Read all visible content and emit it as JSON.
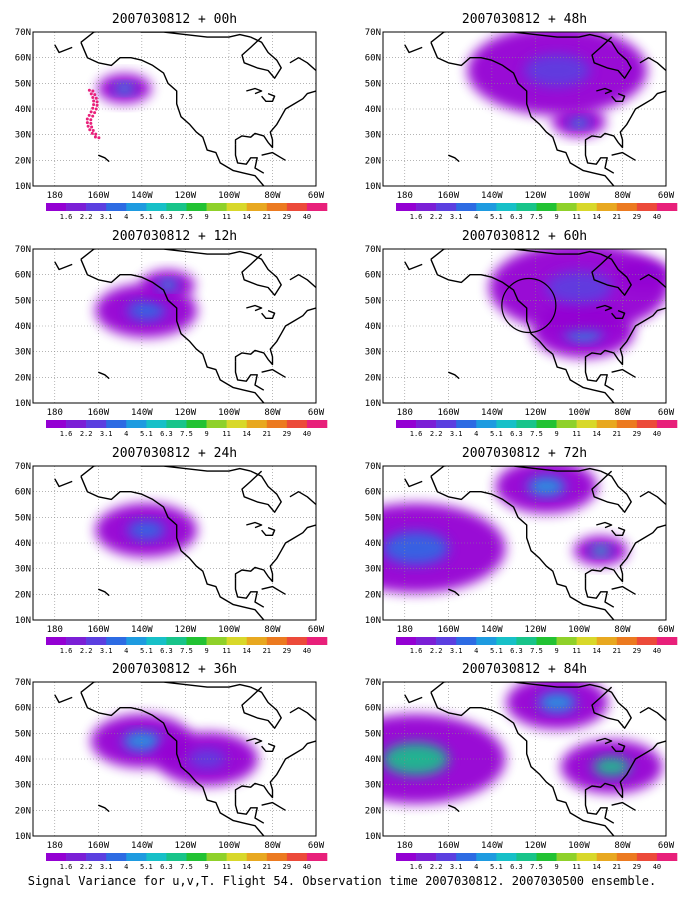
{
  "figure": {
    "footer": "Signal Variance for u,v,T. Flight 54. Observation time 2007030812. 2007030500 ensemble."
  },
  "colorbar": {
    "levels": [
      "1.6",
      "2.2",
      "3.1",
      "4",
      "5.1",
      "6.3",
      "7.5",
      "9",
      "11",
      "14",
      "21",
      "29",
      "40"
    ],
    "colors": [
      "#9400d3",
      "#7b1fd6",
      "#5b3fe0",
      "#2d6be3",
      "#1e9be0",
      "#17c0c8",
      "#18c48a",
      "#22c233",
      "#8fd12a",
      "#d8d82a",
      "#e8a820",
      "#ec7a20",
      "#ec4a3a",
      "#e8207a"
    ]
  },
  "axes": {
    "lon_labels": [
      "180",
      "160W",
      "140W",
      "120W",
      "100W",
      "80W",
      "60W"
    ],
    "lat_labels": [
      "10N",
      "20N",
      "30N",
      "40N",
      "50N",
      "60N",
      "70N"
    ],
    "grid": true,
    "grid_style": "dotted"
  },
  "chart_data": [
    {
      "type": "heatmap",
      "title": "2007030812 + 00h",
      "xlim": [
        "170E",
        "60W"
      ],
      "ylim": [
        "10N",
        "70N"
      ],
      "markers": "observation points (pink dots)",
      "blobs": [
        {
          "lon": -148,
          "lat": 48,
          "value": 4,
          "extent": "small"
        }
      ]
    },
    {
      "type": "heatmap",
      "title": "2007030812 + 12h",
      "xlim": [
        "170E",
        "60W"
      ],
      "ylim": [
        "10N",
        "70N"
      ],
      "blobs": [
        {
          "lon": -138,
          "lat": 46,
          "value": 3.1,
          "extent": "medium"
        },
        {
          "lon": -128,
          "lat": 56,
          "value": 4,
          "extent": "small"
        }
      ]
    },
    {
      "type": "heatmap",
      "title": "2007030812 + 24h",
      "xlim": [
        "170E",
        "60W"
      ],
      "ylim": [
        "10N",
        "70N"
      ],
      "blobs": [
        {
          "lon": -138,
          "lat": 45,
          "value": 3.1,
          "extent": "medium"
        }
      ]
    },
    {
      "type": "heatmap",
      "title": "2007030812 + 36h",
      "xlim": [
        "170E",
        "60W"
      ],
      "ylim": [
        "10N",
        "70N"
      ],
      "blobs": [
        {
          "lon": -140,
          "lat": 47,
          "value": 4,
          "extent": "medium"
        },
        {
          "lon": -110,
          "lat": 40,
          "value": 2.2,
          "extent": "medium"
        }
      ]
    },
    {
      "type": "heatmap",
      "title": "2007030812 + 48h",
      "xlim": [
        "170E",
        "60W"
      ],
      "ylim": [
        "10N",
        "70N"
      ],
      "blobs": [
        {
          "lon": -100,
          "lat": 35,
          "value": 4,
          "extent": "small"
        },
        {
          "lon": -110,
          "lat": 55,
          "value": 2.2,
          "extent": "large"
        }
      ]
    },
    {
      "type": "heatmap",
      "title": "2007030812 + 60h",
      "xlim": [
        "170E",
        "60W"
      ],
      "ylim": [
        "10N",
        "70N"
      ],
      "annotation": "circle near 125W 48N",
      "blobs": [
        {
          "lon": -98,
          "lat": 38,
          "value": 4,
          "extent": "medium"
        },
        {
          "lon": -70,
          "lat": 60,
          "value": 4,
          "extent": "small"
        },
        {
          "lon": -100,
          "lat": 55,
          "value": 2.2,
          "extent": "large"
        }
      ]
    },
    {
      "type": "heatmap",
      "title": "2007030812 + 72h",
      "xlim": [
        "170E",
        "60W"
      ],
      "ylim": [
        "10N",
        "70N"
      ],
      "blobs": [
        {
          "lon": -90,
          "lat": 37,
          "value": 5.1,
          "extent": "small"
        },
        {
          "lon": -115,
          "lat": 62,
          "value": 4,
          "extent": "medium"
        },
        {
          "lon": -175,
          "lat": 38,
          "value": 3.1,
          "extent": "large"
        }
      ]
    },
    {
      "type": "heatmap",
      "title": "2007030812 + 84h",
      "xlim": [
        "170E",
        "60W"
      ],
      "ylim": [
        "10N",
        "70N"
      ],
      "blobs": [
        {
          "lon": -175,
          "lat": 40,
          "value": 6.3,
          "extent": "large"
        },
        {
          "lon": -85,
          "lat": 37,
          "value": 6.3,
          "extent": "medium"
        },
        {
          "lon": -110,
          "lat": 62,
          "value": 4,
          "extent": "medium"
        }
      ]
    }
  ]
}
